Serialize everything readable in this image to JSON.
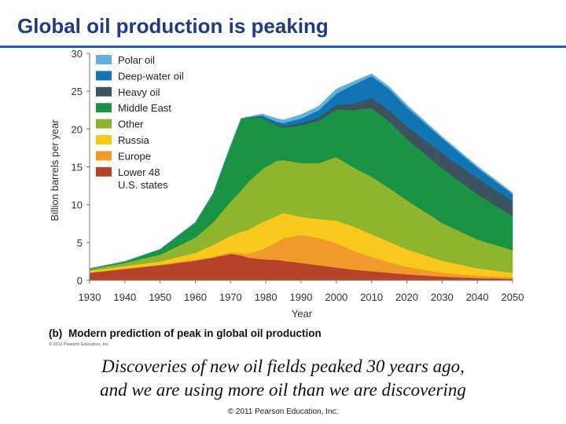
{
  "slide": {
    "title": "Global oil production is peaking",
    "caption_line1": "Discoveries of new oil fields peaked 30 years ago,",
    "caption_line2": "and we are using more oil than we are discovering",
    "footer": "© 2011 Pearson Education, Inc."
  },
  "chart_data": {
    "type": "area",
    "stacked": true,
    "title": "Modern prediction of peak in global oil production",
    "panel_label": "(b)",
    "publisher_credit": "© 2011 Pearson Education, Inc.",
    "xlabel": "Year",
    "ylabel": "Billion barrels per year",
    "xlim": [
      1930,
      2050
    ],
    "ylim": [
      0,
      30
    ],
    "xticks": [
      1930,
      1940,
      1950,
      1960,
      1970,
      1980,
      1990,
      2000,
      2010,
      2020,
      2030,
      2040,
      2050
    ],
    "yticks": [
      0,
      5,
      10,
      15,
      20,
      25,
      30
    ],
    "legend_position": "top-left",
    "x": [
      1930,
      1940,
      1950,
      1960,
      1965,
      1970,
      1973,
      1975,
      1979,
      1983,
      1985,
      1990,
      1995,
      2000,
      2005,
      2010,
      2015,
      2020,
      2030,
      2040,
      2050
    ],
    "series": [
      {
        "name": "Lower 48 U.S. states",
        "legend": [
          "Lower 48",
          "U.S. states"
        ],
        "color": "#b5432a",
        "values": [
          1.0,
          1.5,
          2.0,
          2.6,
          3.0,
          3.5,
          3.3,
          3.0,
          2.8,
          2.7,
          2.6,
          2.3,
          2.0,
          1.7,
          1.4,
          1.2,
          1.0,
          0.8,
          0.5,
          0.3,
          0.2
        ]
      },
      {
        "name": "Europe",
        "color": "#ef9a2b",
        "values": [
          0.05,
          0.1,
          0.1,
          0.15,
          0.15,
          0.2,
          0.3,
          0.5,
          1.3,
          2.3,
          3.0,
          3.7,
          3.6,
          3.2,
          2.5,
          1.9,
          1.4,
          1.0,
          0.5,
          0.3,
          0.2
        ]
      },
      {
        "name": "Russia",
        "color": "#f9c81c",
        "values": [
          0.2,
          0.3,
          0.4,
          0.9,
          1.5,
          2.2,
          2.8,
          3.2,
          3.6,
          3.5,
          3.3,
          2.4,
          2.5,
          3.0,
          3.2,
          3.0,
          2.7,
          2.3,
          1.6,
          1.0,
          0.6
        ]
      },
      {
        "name": "Other",
        "color": "#8fb52e",
        "values": [
          0.2,
          0.4,
          0.9,
          2.0,
          3.0,
          4.5,
          5.5,
          6.3,
          7.0,
          7.3,
          7.0,
          7.1,
          7.4,
          8.4,
          7.8,
          7.6,
          7.1,
          6.5,
          5.0,
          3.8,
          3.0
        ]
      },
      {
        "name": "Middle East",
        "color": "#1a9444",
        "values": [
          0.1,
          0.2,
          0.7,
          2.0,
          3.8,
          7.4,
          9.5,
          8.6,
          6.8,
          4.7,
          4.3,
          5.0,
          5.6,
          6.3,
          7.6,
          9.1,
          8.8,
          8.1,
          7.2,
          6.0,
          4.5
        ]
      },
      {
        "name": "Heavy oil",
        "color": "#3d5360",
        "values": [
          0,
          0,
          0,
          0,
          0,
          0,
          0,
          0,
          0.1,
          0.2,
          0.2,
          0.3,
          0.4,
          0.6,
          0.9,
          1.3,
          1.5,
          1.7,
          2.0,
          2.1,
          2.0
        ]
      },
      {
        "name": "Deep-water oil",
        "color": "#1075b2",
        "values": [
          0,
          0,
          0,
          0,
          0,
          0,
          0,
          0,
          0.2,
          0.3,
          0.4,
          0.6,
          1.0,
          1.5,
          2.5,
          2.9,
          2.8,
          2.5,
          2.0,
          1.4,
          0.9
        ]
      },
      {
        "name": "Polar oil",
        "color": "#62b1dc",
        "values": [
          0,
          0,
          0,
          0,
          0,
          0,
          0,
          0,
          0.2,
          0.4,
          0.4,
          0.5,
          0.5,
          0.6,
          0.4,
          0.3,
          0.3,
          0.3,
          0.2,
          0.2,
          0.2
        ]
      }
    ]
  }
}
